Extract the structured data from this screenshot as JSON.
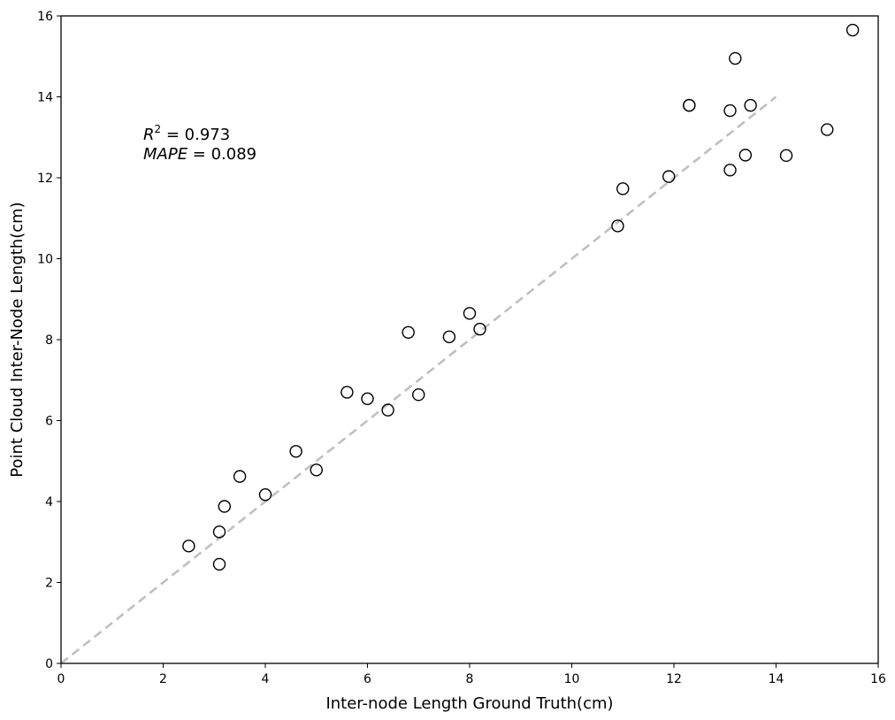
{
  "chart_data": {
    "type": "scatter",
    "title": "",
    "xlabel": "Inter-node Length Ground Truth(cm)",
    "ylabel": "Point Cloud Inter-Node Length(cm)",
    "xlim": [
      0,
      16
    ],
    "ylim": [
      0,
      16
    ],
    "xticks": [
      0,
      2,
      4,
      6,
      8,
      10,
      12,
      14,
      16
    ],
    "yticks": [
      0,
      2,
      4,
      6,
      8,
      10,
      12,
      14,
      16
    ],
    "grid": false,
    "marker": "open-circle",
    "marker_color": "#000000",
    "points": [
      {
        "x": 2.5,
        "y": 2.9
      },
      {
        "x": 3.1,
        "y": 3.25
      },
      {
        "x": 3.1,
        "y": 2.45
      },
      {
        "x": 3.2,
        "y": 3.88
      },
      {
        "x": 3.5,
        "y": 4.62
      },
      {
        "x": 4.0,
        "y": 4.17
      },
      {
        "x": 4.6,
        "y": 5.24
      },
      {
        "x": 5.0,
        "y": 4.78
      },
      {
        "x": 5.6,
        "y": 6.7
      },
      {
        "x": 6.0,
        "y": 6.54
      },
      {
        "x": 6.4,
        "y": 6.26
      },
      {
        "x": 6.8,
        "y": 8.18
      },
      {
        "x": 7.0,
        "y": 6.64
      },
      {
        "x": 7.6,
        "y": 8.07
      },
      {
        "x": 8.0,
        "y": 8.65
      },
      {
        "x": 8.2,
        "y": 8.26
      },
      {
        "x": 10.9,
        "y": 10.81
      },
      {
        "x": 11.0,
        "y": 11.73
      },
      {
        "x": 11.9,
        "y": 12.03
      },
      {
        "x": 12.3,
        "y": 13.79
      },
      {
        "x": 12.3,
        "y": 13.79
      },
      {
        "x": 13.1,
        "y": 13.66
      },
      {
        "x": 13.1,
        "y": 12.19
      },
      {
        "x": 13.2,
        "y": 14.95
      },
      {
        "x": 13.4,
        "y": 12.56
      },
      {
        "x": 13.5,
        "y": 13.79
      },
      {
        "x": 14.2,
        "y": 12.55
      },
      {
        "x": 15.0,
        "y": 13.19
      },
      {
        "x": 15.5,
        "y": 15.65
      }
    ],
    "reference_line": {
      "x": [
        0,
        14
      ],
      "y": [
        0,
        14
      ],
      "style": "dashed",
      "color": "#c0c0c0"
    },
    "annotations": {
      "r2_symbol": "R",
      "r2_superscript": "2",
      "r2_value": " = 0.973",
      "mape_symbol": "MAPE",
      "mape_value": " = 0.089"
    }
  }
}
